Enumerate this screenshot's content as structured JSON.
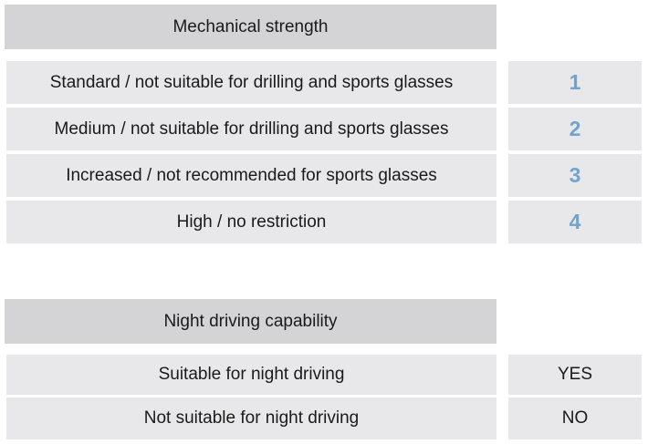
{
  "mechanical": {
    "header": "Mechanical strength",
    "rows": [
      {
        "label": "Standard / not suitable for drilling and sports glasses",
        "value": "1"
      },
      {
        "label": "Medium / not suitable for drilling and sports glasses",
        "value": "2"
      },
      {
        "label": "Increased / not recommended for sports glasses",
        "value": "3"
      },
      {
        "label": "High / no restriction",
        "value": "4"
      }
    ]
  },
  "night": {
    "header": "Night driving capability",
    "rows": [
      {
        "label": "Suitable for night driving",
        "value": "YES"
      },
      {
        "label": "Not suitable for night driving",
        "value": "NO"
      }
    ]
  },
  "colors": {
    "header_bg": "#d4d4d6",
    "row_bg": "#e8e8ea",
    "number_accent": "#6fa3d1"
  }
}
